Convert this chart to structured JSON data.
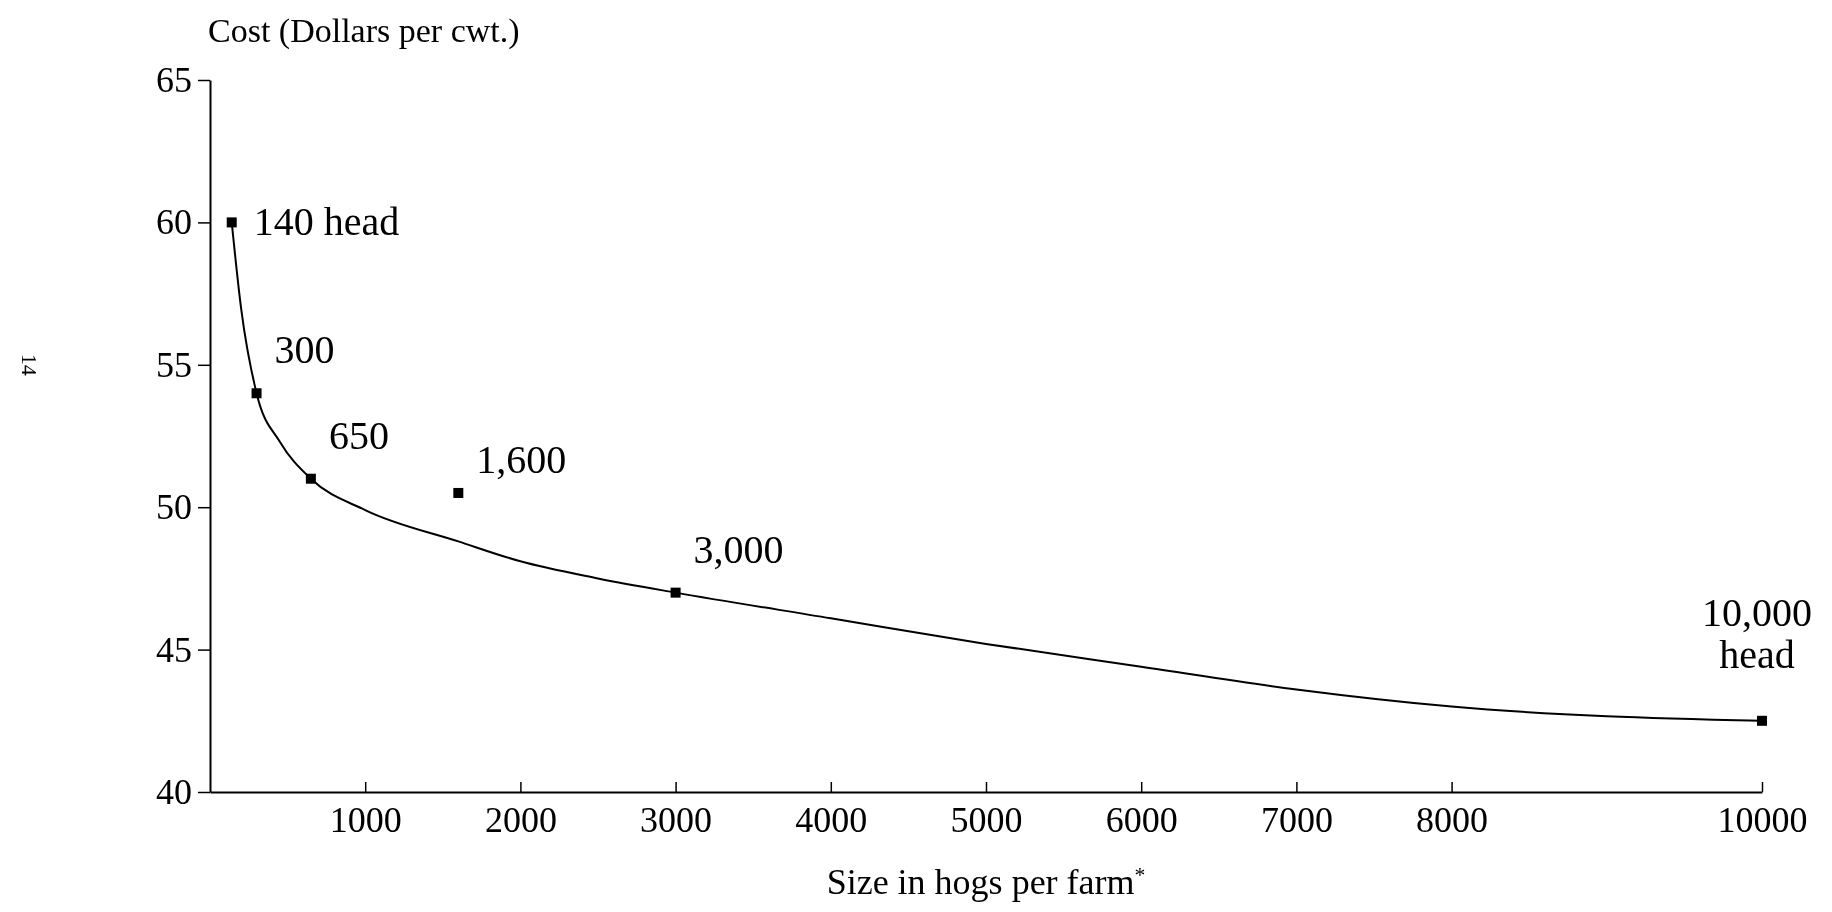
{
  "chart_data": {
    "type": "scatter",
    "ylabel": "Cost (Dollars per cwt.)",
    "xlabel": "Size in hogs per farm$^{*}$",
    "xlim": [
      0,
      10000
    ],
    "xticks": [
      1000,
      2000,
      3000,
      4000,
      5000,
      6000,
      7000,
      8000,
      10000
    ],
    "ylim": [
      40,
      65
    ],
    "yticks": [
      40,
      45,
      50,
      55,
      60,
      65
    ],
    "grid": false,
    "marker": "square",
    "line_style": "solid",
    "series": [
      {
        "color": "#000000",
        "x": [
          140,
          300,
          650,
          1600,
          3000,
          10000
        ],
        "values": [
          60,
          54,
          51,
          50.5,
          47,
          42.5
        ]
      },
      {
        "type": "line",
        "marker": "none",
        "color": "#000000",
        "x": [
          140,
          200,
          300,
          450,
          650,
          1000,
          1600,
          2000,
          2500,
          3000,
          4000,
          5000,
          6000,
          7000,
          8000,
          10000
        ],
        "values": [
          60,
          57,
          54,
          52.3,
          51,
          49.9,
          48.8,
          48.1,
          47.5,
          47,
          46.1,
          45.2,
          44.4,
          43.6,
          43,
          42.5
        ]
      }
    ],
    "annotations": [
      {
        "text": "140 head",
        "x": 140,
        "y": 60
      },
      {
        "text": "300",
        "x": 300,
        "y": 54
      },
      {
        "text": "650",
        "x": 650,
        "y": 51
      },
      {
        "text": "1,600",
        "x": 1600,
        "y": 50.5
      },
      {
        "text": "3,000",
        "x": 3000,
        "y": 47
      },
      {
        "text": "10,000 head",
        "x": 10000,
        "y": 42.5
      },
      "14"
    ]
  }
}
